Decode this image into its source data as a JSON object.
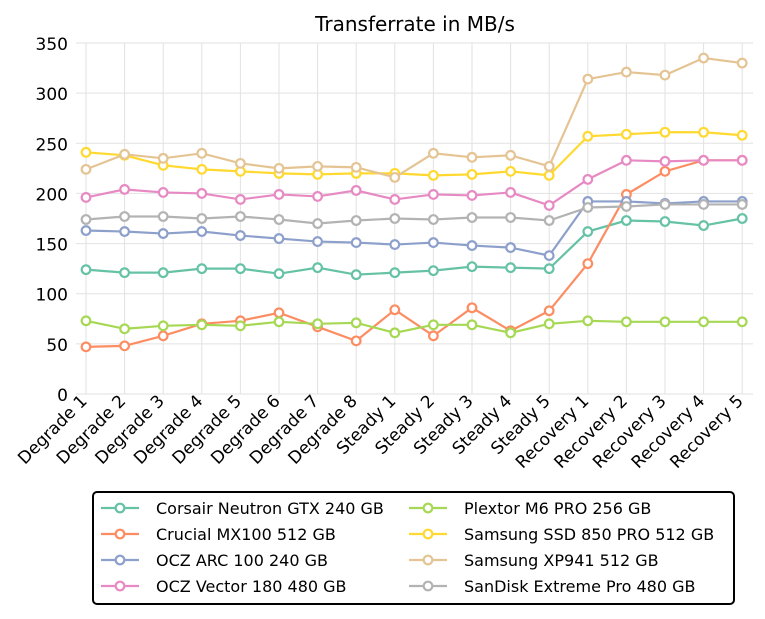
{
  "chart_data": {
    "type": "line",
    "title": "Transferrate in MB/s",
    "xlabel": "",
    "ylabel": "",
    "ylim": [
      0,
      350
    ],
    "yticks": [
      0,
      50,
      100,
      150,
      200,
      250,
      300,
      350
    ],
    "grid": true,
    "legend_position": "bottom",
    "categories": [
      "Degrade 1",
      "Degrade 2",
      "Degrade 3",
      "Degrade 4",
      "Degrade 5",
      "Degrade 6",
      "Degrade 7",
      "Degrade 8",
      "Steady 1",
      "Steady 2",
      "Steady 3",
      "Steady 4",
      "Steady 5",
      "Recovery 1",
      "Recovery 2",
      "Recovery 3",
      "Recovery 4",
      "Recovery 5"
    ],
    "series": [
      {
        "name": "Corsair Neutron GTX 240 GB",
        "color": "#66c2a5",
        "values": [
          124,
          121,
          121,
          125,
          125,
          120,
          126,
          119,
          121,
          123,
          127,
          126,
          125,
          162,
          173,
          172,
          168,
          175
        ]
      },
      {
        "name": "Crucial MX100 512 GB",
        "color": "#fc8d62",
        "values": [
          47,
          48,
          58,
          70,
          73,
          81,
          67,
          53,
          84,
          58,
          86,
          63,
          83,
          130,
          199,
          222,
          233,
          233
        ]
      },
      {
        "name": "OCZ ARC 100 240 GB",
        "color": "#8da0cb",
        "values": [
          163,
          162,
          160,
          162,
          158,
          155,
          152,
          151,
          149,
          151,
          148,
          146,
          138,
          192,
          192,
          190,
          192,
          192
        ]
      },
      {
        "name": "OCZ Vector 180 480 GB",
        "color": "#e78ac3",
        "values": [
          196,
          204,
          201,
          200,
          194,
          199,
          197,
          203,
          194,
          199,
          198,
          201,
          188,
          214,
          233,
          232,
          233,
          233
        ]
      },
      {
        "name": "Plextor M6 PRO 256 GB",
        "color": "#a6d854",
        "values": [
          73,
          65,
          68,
          69,
          68,
          72,
          70,
          71,
          61,
          69,
          69,
          61,
          70,
          73,
          72,
          72,
          72,
          72
        ]
      },
      {
        "name": "Samsung SSD 850 PRO 512 GB",
        "color": "#ffd92f",
        "values": [
          241,
          238,
          228,
          224,
          222,
          220,
          219,
          220,
          220,
          218,
          219,
          222,
          218,
          257,
          259,
          261,
          261,
          258
        ]
      },
      {
        "name": "Samsung XP941 512 GB",
        "color": "#e5c494",
        "values": [
          224,
          239,
          235,
          240,
          230,
          225,
          227,
          226,
          216,
          240,
          236,
          238,
          227,
          314,
          321,
          318,
          335,
          330
        ]
      },
      {
        "name": "SanDisk Extreme Pro 480 GB",
        "color": "#b3b3b3",
        "values": [
          174,
          177,
          177,
          175,
          177,
          174,
          170,
          173,
          175,
          174,
          176,
          176,
          173,
          186,
          187,
          189,
          189,
          189
        ]
      }
    ]
  }
}
